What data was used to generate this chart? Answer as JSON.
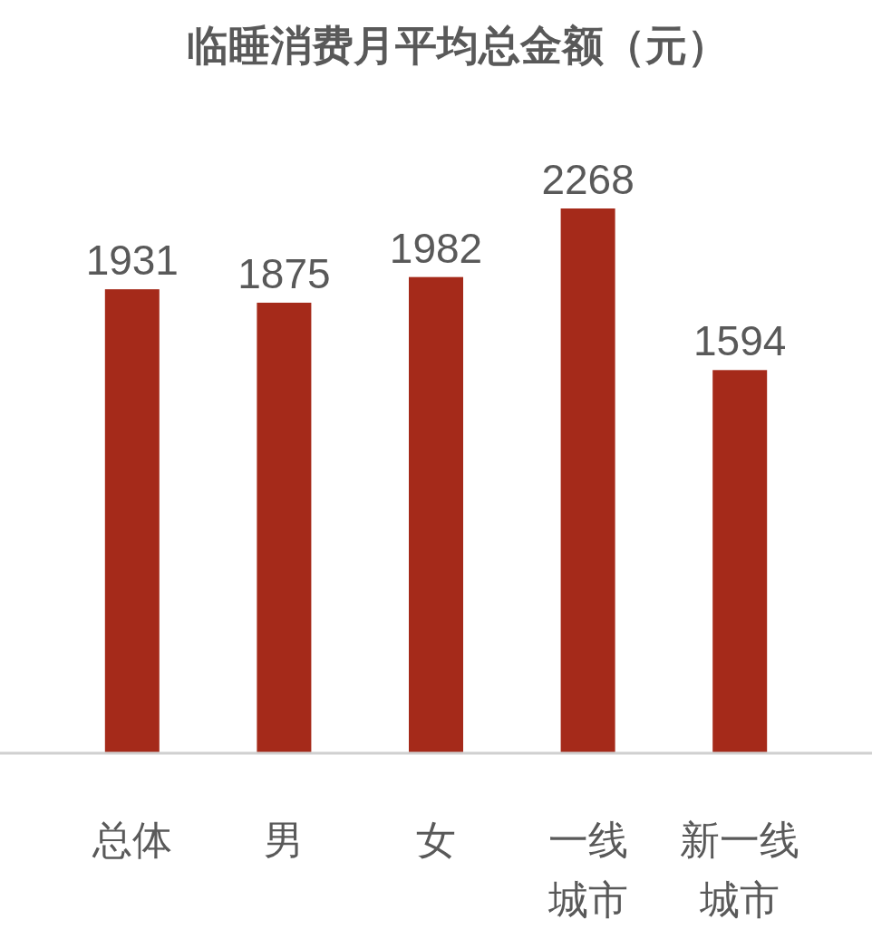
{
  "chart_data": {
    "type": "bar",
    "title": "临睡消费月平均总金额（元）",
    "categories": [
      "总体",
      "男",
      "女",
      "一线城市",
      "新一线城市"
    ],
    "values": [
      1931,
      1875,
      1982,
      2268,
      1594
    ],
    "color": "#a52a1a",
    "data_labels": true
  }
}
